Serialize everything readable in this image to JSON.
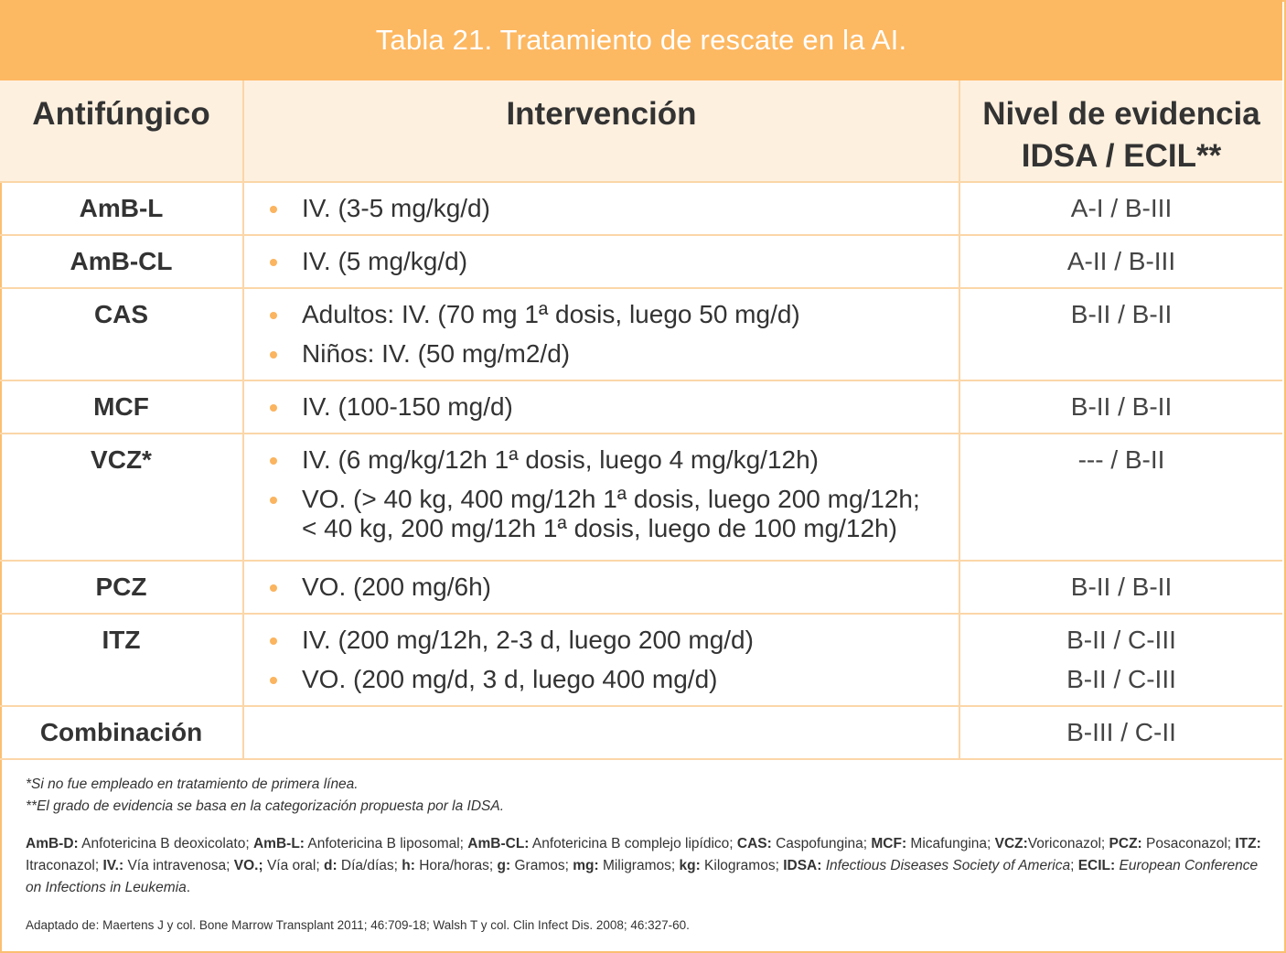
{
  "title": "Tabla 21. Tratamiento de rescate en la AI.",
  "headers": {
    "col1": "Antifúngico",
    "col2": "Intervención",
    "col3_line1": "Nivel de evidencia",
    "col3_line2": "IDSA / ECIL**"
  },
  "rows": [
    {
      "drug": "AmB-L",
      "interventions": [
        "IV. (3-5 mg/kg/d)"
      ],
      "evidence": [
        "A-I / B-III"
      ]
    },
    {
      "drug": "AmB-CL",
      "interventions": [
        "IV. (5 mg/kg/d)"
      ],
      "evidence": [
        "A-II / B-III"
      ]
    },
    {
      "drug": "CAS",
      "interventions": [
        "Adultos:  IV. (70 mg 1ª dosis, luego 50 mg/d)",
        "Niños: IV. (50 mg/m2/d)"
      ],
      "evidence": [
        "B-II / B-II"
      ]
    },
    {
      "drug": "MCF",
      "interventions": [
        "IV. (100-150 mg/d)"
      ],
      "evidence": [
        "B-II / B-II"
      ]
    },
    {
      "drug": "VCZ*",
      "interventions": [
        "IV. (6 mg/kg/12h 1ª dosis, luego 4 mg/kg/12h)",
        "VO. (> 40 kg, 400 mg/12h 1ª dosis, luego 200 mg/12h;",
        "< 40 kg, 200 mg/12h 1ª dosis, luego de 100 mg/12h)"
      ],
      "evidence": [
        "--- / B-II"
      ]
    },
    {
      "drug": "PCZ",
      "interventions": [
        "VO. (200 mg/6h)"
      ],
      "evidence": [
        "B-II / B-II"
      ]
    },
    {
      "drug": "ITZ",
      "interventions": [
        "IV. (200 mg/12h, 2-3 d, luego 200 mg/d)",
        "VO. (200 mg/d, 3 d, luego 400 mg/d)"
      ],
      "evidence": [
        "B-II / C-III",
        "B-II / C-III"
      ]
    },
    {
      "drug": "Combinación",
      "interventions": [],
      "evidence": [
        "B-III / C-II"
      ]
    }
  ],
  "notes": [
    "*Si no fue empleado en tratamiento de primera línea.",
    "**El grado de evidencia se basa en la categorización propuesta por la IDSA."
  ],
  "abbreviations": [
    {
      "term": "AmB-D:",
      "def": " Anfotericina B deoxicolato; "
    },
    {
      "term": "AmB-L:",
      "def": " Anfotericina B liposomal; "
    },
    {
      "term": "AmB-CL:",
      "def": " Anfotericina B complejo lipídico; "
    },
    {
      "term": "CAS:",
      "def": " Caspofungina; "
    },
    {
      "term": "MCF:",
      "def": " Micafungina; "
    },
    {
      "term": "VCZ:",
      "def": "Voriconazol; "
    },
    {
      "term": "PCZ:",
      "def": " Posaconazol; "
    },
    {
      "term": "ITZ:",
      "def": " Itraconazol; "
    },
    {
      "term": "IV.:",
      "def": " Vía intravenosa; "
    },
    {
      "term": "VO.;",
      "def": " Vía oral; "
    },
    {
      "term": "d:",
      "def": " Día/días; "
    },
    {
      "term": "h:",
      "def": " Hora/horas; "
    },
    {
      "term": "g:",
      "def": " Gramos; "
    },
    {
      "term": "mg:",
      "def": " Miligramos; "
    },
    {
      "term": "kg:",
      "def": " Kilogramos; "
    },
    {
      "term": "IDSA:",
      "def": " ",
      "italic": "Infectious Diseases Society of America",
      "after": "; "
    },
    {
      "term": "ECIL:",
      "def": " ",
      "italic": "European Conference on Infections in Leukemia",
      "after": "."
    }
  ],
  "source": "Adaptado de: Maertens J y col. Bone Marrow Transplant 2011; 46:709-18; Walsh T y col.  Clin Infect Dis. 2008; 46:327-60.",
  "colors": {
    "accent": "#fdb862",
    "header_bg": "#fef0df",
    "border": "#fbd6a8",
    "bullet": "#fbb45f"
  }
}
